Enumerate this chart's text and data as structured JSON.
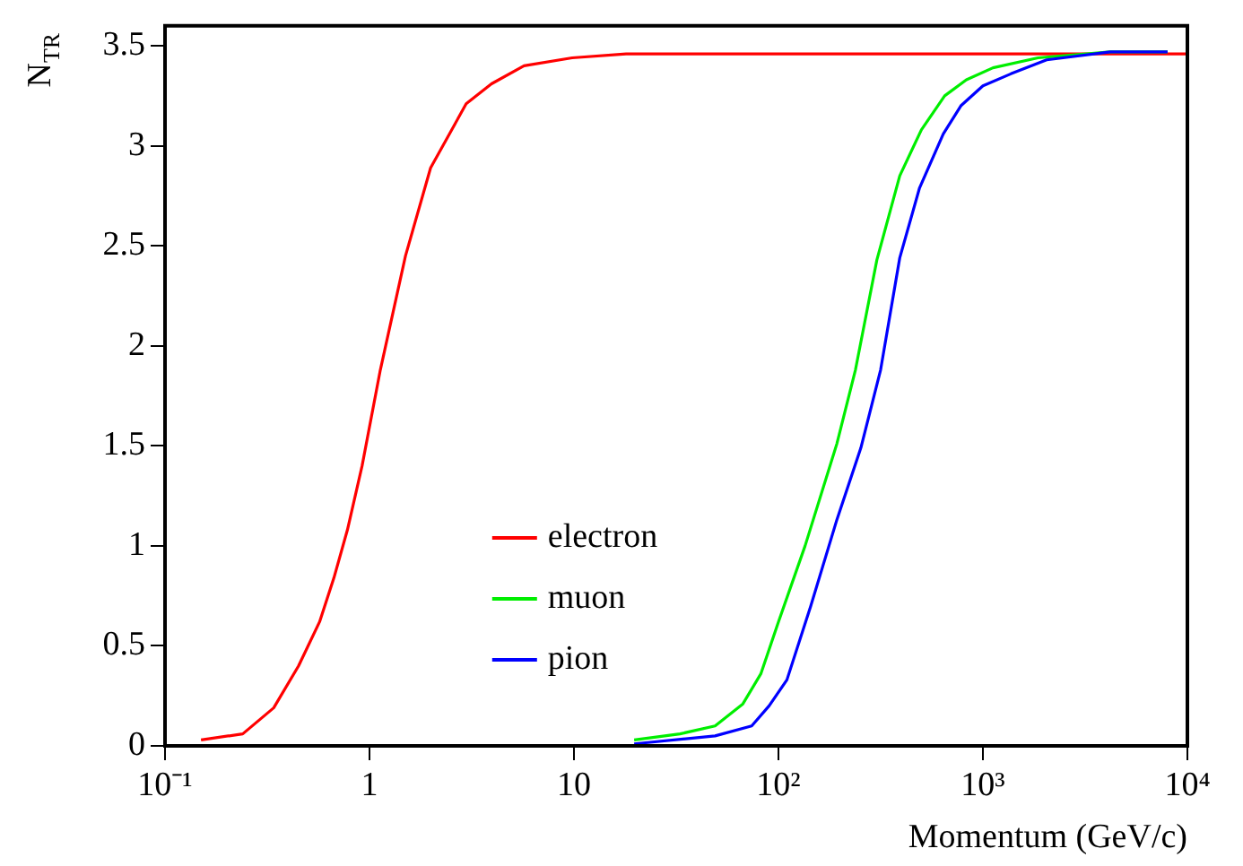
{
  "chart_data": {
    "type": "line",
    "xlabel": "Momentum (GeV/c)",
    "ylabel": "N$_{TR}$",
    "log": "x",
    "xlim": [
      0.1,
      10000
    ],
    "xticks": [
      {
        "value": 0.1,
        "label": "10⁻¹"
      },
      1,
      10,
      {
        "value": 100,
        "label": "10²"
      },
      {
        "value": 1000,
        "label": "10³"
      },
      {
        "value": 10000,
        "label": "10⁴"
      }
    ],
    "ylim": [
      0,
      3.6
    ],
    "yticks": [
      0,
      0.5,
      1,
      1.5,
      2,
      2.5,
      3,
      3.5
    ],
    "grid": false,
    "legend": "bottom",
    "marker": "none",
    "line_style": "solid",
    "series": [
      {
        "name": "electron",
        "color": "#ff0000",
        "x": [
          0.15,
          0.24,
          0.34,
          0.45,
          0.57,
          0.67,
          0.78,
          0.92,
          1.13,
          1.5,
          1.99,
          2.97,
          3.95,
          5.7,
          9.8,
          18,
          10000
        ],
        "values": [
          0.03,
          0.06,
          0.19,
          0.4,
          0.62,
          0.84,
          1.08,
          1.4,
          1.88,
          2.45,
          2.89,
          3.21,
          3.31,
          3.4,
          3.44,
          3.46,
          3.46
        ]
      },
      {
        "name": "muon",
        "color": "#00ee00",
        "x": [
          19.7,
          33,
          49,
          67,
          82,
          100,
          135,
          193,
          238,
          303,
          392,
          500,
          650,
          830,
          1120,
          1860,
          4200,
          8000
        ],
        "values": [
          0.03,
          0.06,
          0.1,
          0.21,
          0.36,
          0.62,
          1.0,
          1.51,
          1.88,
          2.43,
          2.85,
          3.08,
          3.25,
          3.33,
          3.39,
          3.44,
          3.47,
          3.47
        ]
      },
      {
        "name": "pion",
        "color": "#0000ff",
        "x": [
          19.7,
          49,
          74,
          90,
          110,
          144,
          193,
          253,
          316,
          392,
          490,
          640,
          780,
          1000,
          1370,
          2050,
          4200,
          8000
        ],
        "values": [
          0.01,
          0.05,
          0.1,
          0.2,
          0.33,
          0.7,
          1.13,
          1.49,
          1.88,
          2.44,
          2.79,
          3.06,
          3.2,
          3.3,
          3.36,
          3.43,
          3.47,
          3.47
        ]
      }
    ]
  }
}
